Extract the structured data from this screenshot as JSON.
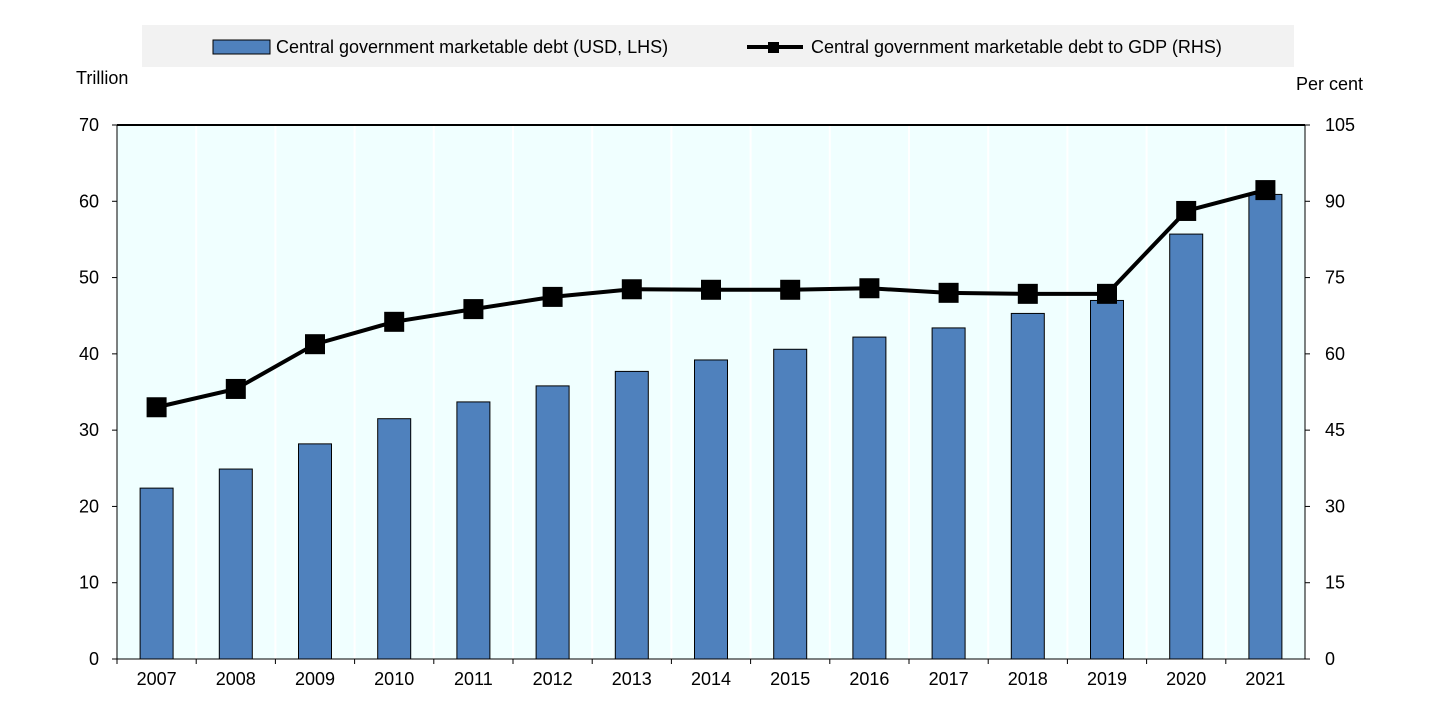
{
  "chart_data": {
    "type": "bar+line",
    "categories": [
      "2007",
      "2008",
      "2009",
      "2010",
      "2011",
      "2012",
      "2013",
      "2014",
      "2015",
      "2016",
      "2017",
      "2018",
      "2019",
      "2020",
      "2021"
    ],
    "series": [
      {
        "name": "Central government marketable debt (USD, LHS)",
        "type": "bar",
        "axis": "left",
        "color": "#4f81bd",
        "values": [
          22.4,
          24.9,
          28.2,
          31.5,
          33.7,
          35.8,
          37.7,
          39.2,
          40.6,
          42.2,
          43.4,
          45.3,
          47.0,
          55.7,
          60.9
        ]
      },
      {
        "name": "Central government marketable debt to GDP (RHS)",
        "type": "line",
        "axis": "right",
        "color": "#000000",
        "values": [
          49.5,
          53.1,
          61.9,
          66.3,
          68.8,
          71.2,
          72.7,
          72.6,
          72.6,
          72.9,
          72.0,
          71.8,
          71.8,
          88.1,
          92.2
        ]
      }
    ],
    "ylabel_left": "Trillion",
    "ylabel_right": "Per cent",
    "ylim_left": [
      0,
      70
    ],
    "ylim_right": [
      0,
      105
    ],
    "yticks_left": [
      "0",
      "10",
      "20",
      "30",
      "40",
      "50",
      "60",
      "70"
    ],
    "yticks_right": [
      "0",
      "15",
      "30",
      "45",
      "60",
      "75",
      "90",
      "105"
    ],
    "legend_placement": "top",
    "plot_background": "#f0ffff",
    "grid": "vertical, white"
  }
}
